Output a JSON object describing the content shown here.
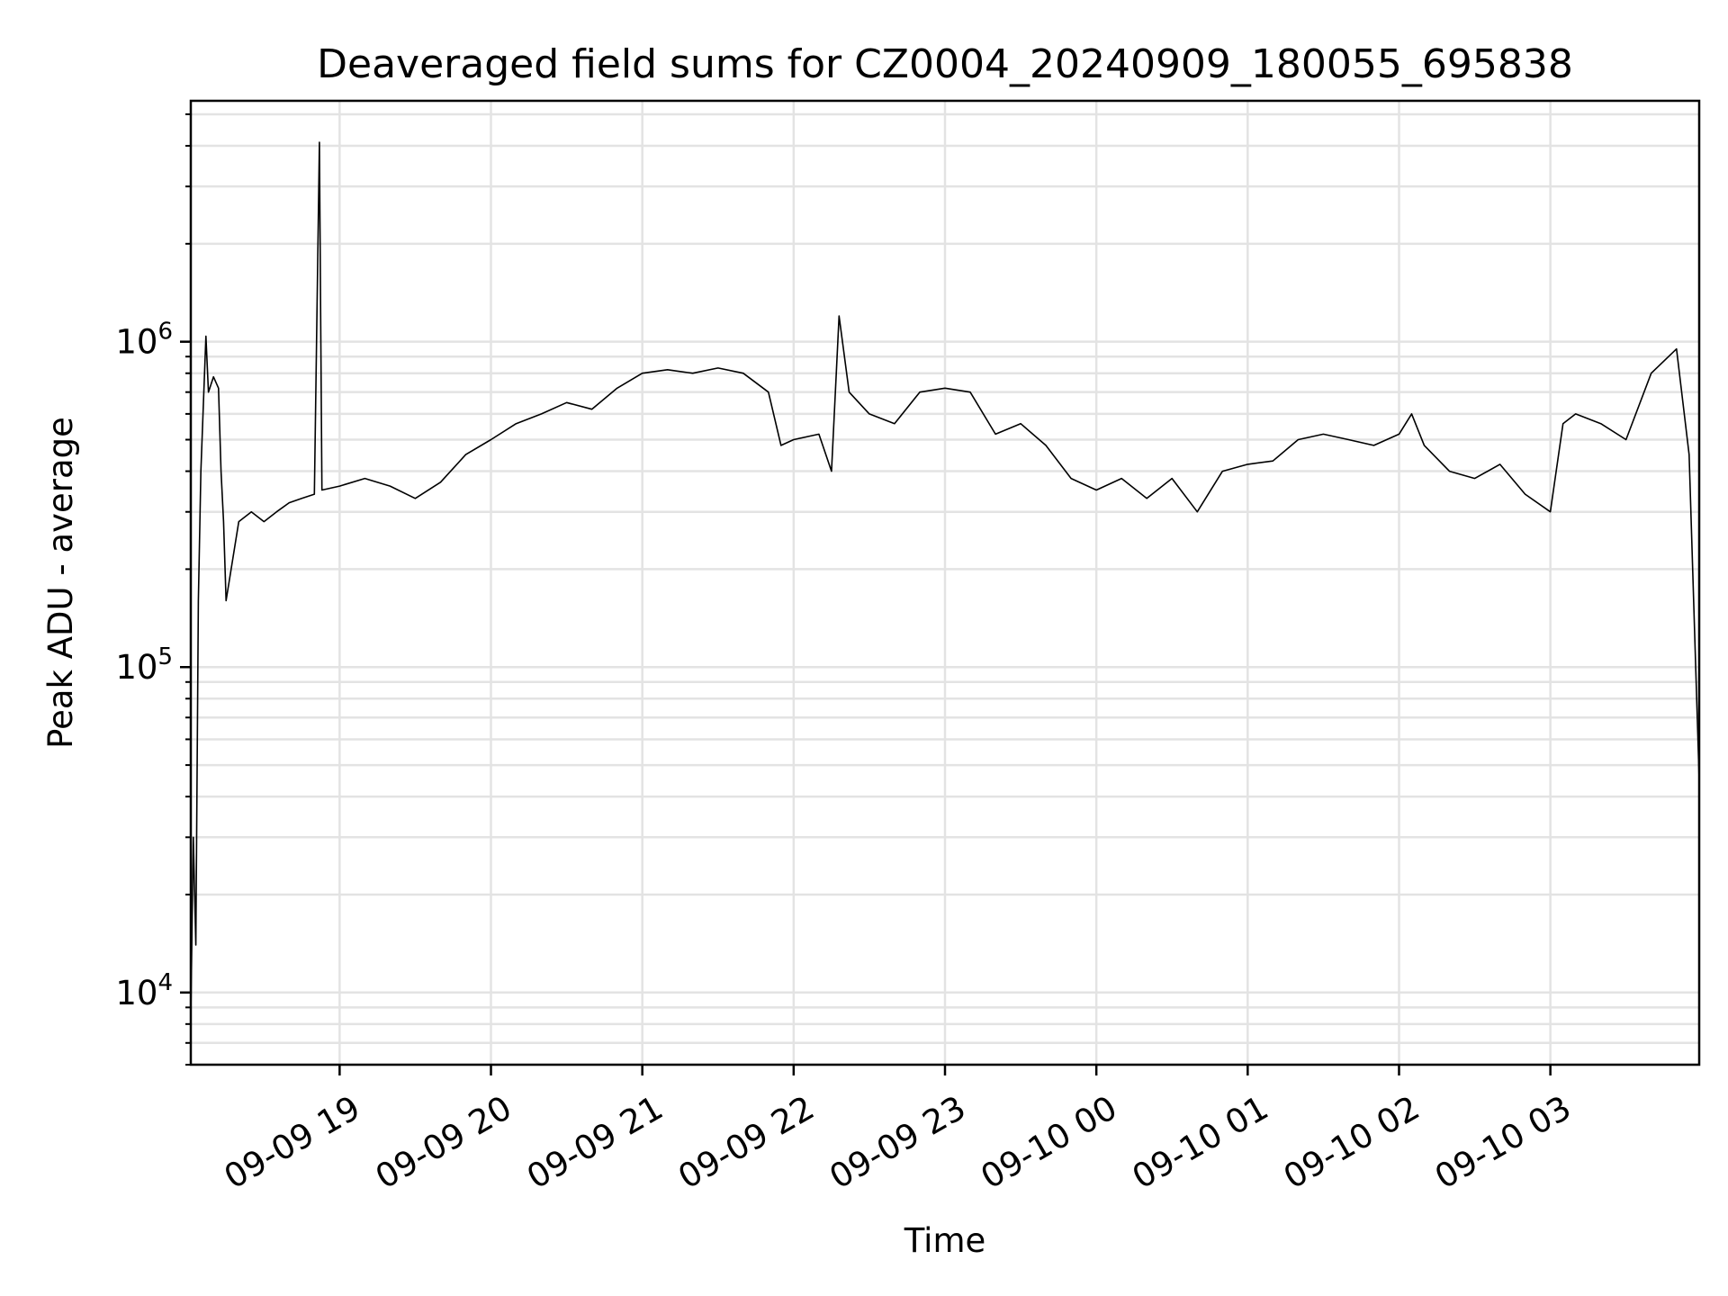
{
  "chart_data": {
    "type": "line",
    "title": "Deaveraged field sums for CZ0004_20240909_180055_695838",
    "xlabel": "Time",
    "ylabel": "Peak ADU - average",
    "yscale": "log",
    "ylim": [
      6000,
      5500000
    ],
    "xlim": [
      "2024-09-09T18:01",
      "2024-09-10T03:59"
    ],
    "grid": true,
    "x_ticks": [
      {
        "value": "2024-09-09T19:00",
        "label": "09-09 19"
      },
      {
        "value": "2024-09-09T20:00",
        "label": "09-09 20"
      },
      {
        "value": "2024-09-09T21:00",
        "label": "09-09 21"
      },
      {
        "value": "2024-09-09T22:00",
        "label": "09-09 22"
      },
      {
        "value": "2024-09-09T23:00",
        "label": "09-09 23"
      },
      {
        "value": "2024-09-10T00:00",
        "label": "09-10 00"
      },
      {
        "value": "2024-09-10T01:00",
        "label": "09-10 01"
      },
      {
        "value": "2024-09-10T02:00",
        "label": "09-10 02"
      },
      {
        "value": "2024-09-10T03:00",
        "label": "09-10 03"
      }
    ],
    "y_ticks": [
      {
        "value": 10000,
        "base": "10",
        "exp": "4"
      },
      {
        "value": 100000,
        "base": "10",
        "exp": "5"
      },
      {
        "value": 1000000,
        "base": "10",
        "exp": "6"
      }
    ],
    "line_color": "#000000",
    "series": [
      {
        "points": [
          [
            "2024-09-09T18:01",
            8500
          ],
          [
            "2024-09-09T18:02",
            30000
          ],
          [
            "2024-09-09T18:03",
            14000
          ],
          [
            "2024-09-09T18:04",
            160000
          ],
          [
            "2024-09-09T18:05",
            400000
          ],
          [
            "2024-09-09T18:07",
            1040000
          ],
          [
            "2024-09-09T18:08",
            700000
          ],
          [
            "2024-09-09T18:10",
            780000
          ],
          [
            "2024-09-09T18:12",
            720000
          ],
          [
            "2024-09-09T18:13",
            400000
          ],
          [
            "2024-09-09T18:14",
            280000
          ],
          [
            "2024-09-09T18:15",
            160000
          ],
          [
            "2024-09-09T18:20",
            280000
          ],
          [
            "2024-09-09T18:25",
            300000
          ],
          [
            "2024-09-09T18:30",
            280000
          ],
          [
            "2024-09-09T18:35",
            300000
          ],
          [
            "2024-09-09T18:40",
            320000
          ],
          [
            "2024-09-09T18:45",
            330000
          ],
          [
            "2024-09-09T18:50",
            340000
          ],
          [
            "2024-09-09T18:52",
            4100000
          ],
          [
            "2024-09-09T18:53",
            350000
          ],
          [
            "2024-09-09T19:00",
            360000
          ],
          [
            "2024-09-09T19:10",
            380000
          ],
          [
            "2024-09-09T19:20",
            360000
          ],
          [
            "2024-09-09T19:30",
            330000
          ],
          [
            "2024-09-09T19:40",
            370000
          ],
          [
            "2024-09-09T19:50",
            450000
          ],
          [
            "2024-09-09T20:00",
            500000
          ],
          [
            "2024-09-09T20:10",
            560000
          ],
          [
            "2024-09-09T20:20",
            600000
          ],
          [
            "2024-09-09T20:30",
            650000
          ],
          [
            "2024-09-09T20:40",
            620000
          ],
          [
            "2024-09-09T20:50",
            720000
          ],
          [
            "2024-09-09T21:00",
            800000
          ],
          [
            "2024-09-09T21:10",
            820000
          ],
          [
            "2024-09-09T21:20",
            800000
          ],
          [
            "2024-09-09T21:30",
            830000
          ],
          [
            "2024-09-09T21:40",
            800000
          ],
          [
            "2024-09-09T21:50",
            700000
          ],
          [
            "2024-09-09T21:55",
            480000
          ],
          [
            "2024-09-09T22:00",
            500000
          ],
          [
            "2024-09-09T22:10",
            520000
          ],
          [
            "2024-09-09T22:15",
            400000
          ],
          [
            "2024-09-09T22:18",
            1200000
          ],
          [
            "2024-09-09T22:22",
            700000
          ],
          [
            "2024-09-09T22:30",
            600000
          ],
          [
            "2024-09-09T22:40",
            560000
          ],
          [
            "2024-09-09T22:50",
            700000
          ],
          [
            "2024-09-09T23:00",
            720000
          ],
          [
            "2024-09-09T23:10",
            700000
          ],
          [
            "2024-09-09T23:20",
            520000
          ],
          [
            "2024-09-09T23:30",
            560000
          ],
          [
            "2024-09-09T23:40",
            480000
          ],
          [
            "2024-09-09T23:50",
            380000
          ],
          [
            "2024-09-10T00:00",
            350000
          ],
          [
            "2024-09-10T00:10",
            380000
          ],
          [
            "2024-09-10T00:20",
            330000
          ],
          [
            "2024-09-10T00:30",
            380000
          ],
          [
            "2024-09-10T00:40",
            300000
          ],
          [
            "2024-09-10T00:50",
            400000
          ],
          [
            "2024-09-10T01:00",
            420000
          ],
          [
            "2024-09-10T01:10",
            430000
          ],
          [
            "2024-09-10T01:20",
            500000
          ],
          [
            "2024-09-10T01:30",
            520000
          ],
          [
            "2024-09-10T01:40",
            500000
          ],
          [
            "2024-09-10T01:50",
            480000
          ],
          [
            "2024-09-10T02:00",
            520000
          ],
          [
            "2024-09-10T02:05",
            600000
          ],
          [
            "2024-09-10T02:10",
            480000
          ],
          [
            "2024-09-10T02:20",
            400000
          ],
          [
            "2024-09-10T02:30",
            380000
          ],
          [
            "2024-09-10T02:40",
            420000
          ],
          [
            "2024-09-10T02:50",
            340000
          ],
          [
            "2024-09-10T03:00",
            300000
          ],
          [
            "2024-09-10T03:05",
            560000
          ],
          [
            "2024-09-10T03:10",
            600000
          ],
          [
            "2024-09-10T03:20",
            560000
          ],
          [
            "2024-09-10T03:30",
            500000
          ],
          [
            "2024-09-10T03:40",
            800000
          ],
          [
            "2024-09-10T03:50",
            950000
          ],
          [
            "2024-09-10T03:55",
            450000
          ],
          [
            "2024-09-10T03:58",
            80000
          ],
          [
            "2024-09-10T03:59",
            45000
          ]
        ]
      }
    ]
  }
}
